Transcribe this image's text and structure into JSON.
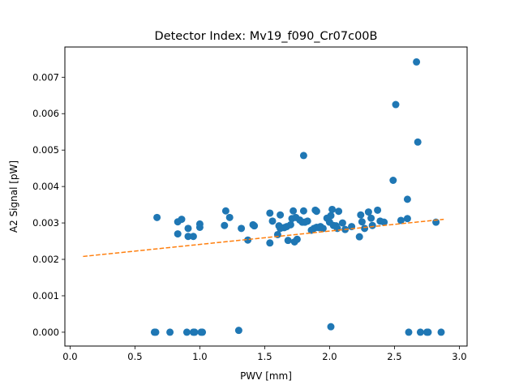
{
  "chart_data": {
    "type": "scatter",
    "title": "Detector Index: Mv19_f090_Cr07c00B",
    "xlabel": "PWV [mm]",
    "ylabel": "A2 Signal [pW]",
    "xlim": [
      -0.04,
      3.06
    ],
    "ylim": [
      -0.00038,
      0.00783
    ],
    "xticks": [
      0.0,
      0.5,
      1.0,
      1.5,
      2.0,
      2.5,
      3.0
    ],
    "xtick_labels": [
      "0.0",
      "0.5",
      "1.0",
      "1.5",
      "2.0",
      "2.5",
      "3.0"
    ],
    "yticks": [
      0.0,
      0.001,
      0.002,
      0.003,
      0.004,
      0.005,
      0.006,
      0.007
    ],
    "ytick_labels": [
      "0.000",
      "0.001",
      "0.002",
      "0.003",
      "0.004",
      "0.005",
      "0.006",
      "0.007"
    ],
    "grid": false,
    "series": [
      {
        "name": "data",
        "kind": "scatter",
        "color": "#1f77b4",
        "points": [
          [
            0.65,
            0.0
          ],
          [
            0.66,
            0.0
          ],
          [
            0.67,
            0.00315
          ],
          [
            0.77,
            0.0
          ],
          [
            0.83,
            0.0027
          ],
          [
            0.83,
            0.00303
          ],
          [
            0.86,
            0.0031
          ],
          [
            0.9,
            0.0
          ],
          [
            0.91,
            0.00263
          ],
          [
            0.91,
            0.00285
          ],
          [
            0.95,
            0.0
          ],
          [
            0.95,
            0.00263
          ],
          [
            0.96,
            0.0
          ],
          [
            1.0,
            0.00297
          ],
          [
            1.0,
            0.00288
          ],
          [
            1.01,
            0.0
          ],
          [
            1.02,
            0.0
          ],
          [
            1.19,
            0.00293
          ],
          [
            1.2,
            0.00333
          ],
          [
            1.23,
            0.00315
          ],
          [
            1.3,
            5e-05
          ],
          [
            1.32,
            0.00285
          ],
          [
            1.37,
            0.00253
          ],
          [
            1.41,
            0.00295
          ],
          [
            1.42,
            0.00292
          ],
          [
            1.54,
            0.00245
          ],
          [
            1.54,
            0.00327
          ],
          [
            1.56,
            0.00305
          ],
          [
            1.6,
            0.00268
          ],
          [
            1.61,
            0.00292
          ],
          [
            1.62,
            0.00322
          ],
          [
            1.62,
            0.00285
          ],
          [
            1.65,
            0.00287
          ],
          [
            1.67,
            0.0029
          ],
          [
            1.68,
            0.00252
          ],
          [
            1.7,
            0.00295
          ],
          [
            1.71,
            0.00312
          ],
          [
            1.72,
            0.00333
          ],
          [
            1.73,
            0.00248
          ],
          [
            1.74,
            0.00315
          ],
          [
            1.75,
            0.00255
          ],
          [
            1.77,
            0.00308
          ],
          [
            1.79,
            0.00302
          ],
          [
            1.8,
            0.00485
          ],
          [
            1.8,
            0.00333
          ],
          [
            1.81,
            0.00302
          ],
          [
            1.83,
            0.00305
          ],
          [
            1.86,
            0.0028
          ],
          [
            1.88,
            0.00285
          ],
          [
            1.89,
            0.00335
          ],
          [
            1.9,
            0.00332
          ],
          [
            1.9,
            0.00288
          ],
          [
            1.92,
            0.00287
          ],
          [
            1.93,
            0.0029
          ],
          [
            1.95,
            0.00285
          ],
          [
            1.98,
            0.00313
          ],
          [
            2.0,
            0.00302
          ],
          [
            2.01,
            0.00015
          ],
          [
            2.01,
            0.0032
          ],
          [
            2.02,
            0.00337
          ],
          [
            2.03,
            0.00293
          ],
          [
            2.05,
            0.00292
          ],
          [
            2.06,
            0.00285
          ],
          [
            2.07,
            0.00332
          ],
          [
            2.1,
            0.003
          ],
          [
            2.12,
            0.00282
          ],
          [
            2.17,
            0.0029
          ],
          [
            2.23,
            0.00262
          ],
          [
            2.24,
            0.00322
          ],
          [
            2.25,
            0.00303
          ],
          [
            2.27,
            0.00285
          ],
          [
            2.3,
            0.0033
          ],
          [
            2.32,
            0.00313
          ],
          [
            2.33,
            0.00293
          ],
          [
            2.37,
            0.00335
          ],
          [
            2.39,
            0.00305
          ],
          [
            2.42,
            0.00302
          ],
          [
            2.49,
            0.00417
          ],
          [
            2.51,
            0.00625
          ],
          [
            2.55,
            0.00307
          ],
          [
            2.6,
            0.00312
          ],
          [
            2.6,
            0.00365
          ],
          [
            2.61,
            0.0
          ],
          [
            2.67,
            0.00742
          ],
          [
            2.68,
            0.00522
          ],
          [
            2.7,
            0.0
          ],
          [
            2.75,
            0.0
          ],
          [
            2.76,
            0.0
          ],
          [
            2.82,
            0.00302
          ],
          [
            2.86,
            0.0
          ]
        ]
      },
      {
        "name": "fit",
        "kind": "line",
        "style": "dashed",
        "color": "#ff7f0e",
        "x": [
          0.1,
          2.88
        ],
        "y": [
          0.00208,
          0.0031
        ]
      }
    ]
  }
}
